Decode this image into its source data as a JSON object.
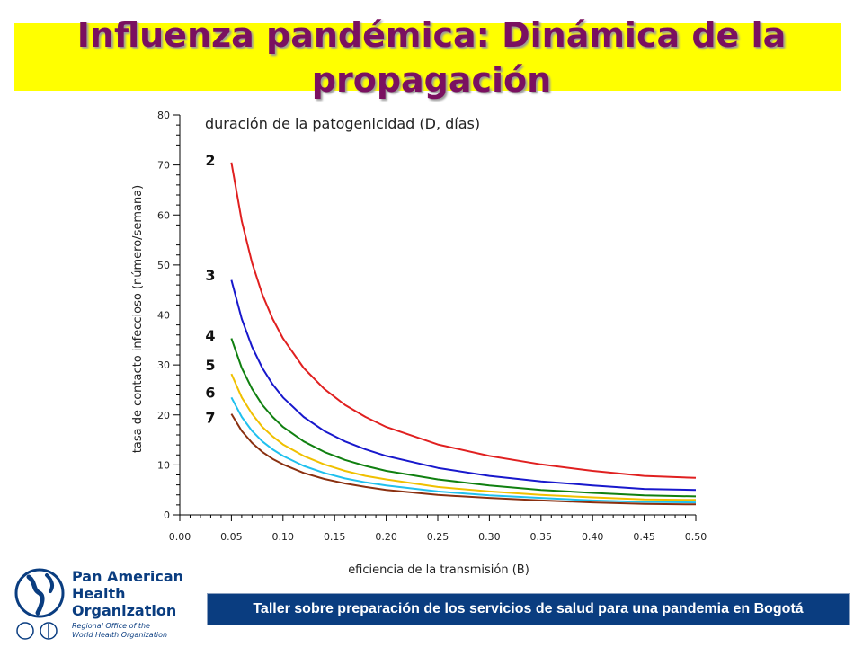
{
  "page": {
    "title_line1": "Influenza pandémica: Dinámica de la",
    "title_line2": "propagación",
    "footer": "Taller sobre preparación de los servicios de salud para una pandemia en Bogotá",
    "logo": {
      "line1": "Pan American",
      "line2": "Health",
      "line3": "Organization",
      "sub1": "Regional Office of the",
      "sub2": "World Health Organization"
    }
  },
  "chart_data": {
    "type": "line",
    "title": "duración de la patogenicidad (D, días)",
    "xlabel": "eficiencia de la transmisión (B)",
    "ylabel": "tasa de contacto infeccioso (número/semana)",
    "xlim": [
      0,
      0.5
    ],
    "ylim": [
      0,
      80
    ],
    "x_ticks": [
      "0.00",
      "0.05",
      "0.10",
      "0.15",
      "0.20",
      "0.25",
      "0.30",
      "0.35",
      "0.40",
      "0.45",
      "0.50"
    ],
    "y_ticks": [
      "0",
      "10",
      "20",
      "30",
      "40",
      "50",
      "60",
      "70",
      "80"
    ],
    "x": [
      0.05,
      0.06,
      0.07,
      0.08,
      0.09,
      0.1,
      0.12,
      0.14,
      0.16,
      0.18,
      0.2,
      0.25,
      0.3,
      0.35,
      0.4,
      0.45,
      0.5
    ],
    "series": [
      {
        "name": "2",
        "color": "#e02020",
        "label_y": 71,
        "values": [
          70.5,
          58.8,
          50.4,
          44.1,
          39.2,
          35.3,
          29.4,
          25.2,
          22.0,
          19.6,
          17.6,
          14.1,
          11.8,
          10.1,
          8.8,
          7.8,
          7.4
        ]
      },
      {
        "name": "3",
        "color": "#1818cc",
        "label_y": 48,
        "values": [
          47.0,
          39.2,
          33.6,
          29.4,
          26.1,
          23.5,
          19.6,
          16.8,
          14.7,
          13.1,
          11.8,
          9.4,
          7.8,
          6.7,
          5.9,
          5.2,
          5.0
        ]
      },
      {
        "name": "4",
        "color": "#108010",
        "label_y": 36,
        "values": [
          35.3,
          29.4,
          25.2,
          22.0,
          19.6,
          17.6,
          14.7,
          12.6,
          11.0,
          9.8,
          8.8,
          7.1,
          5.9,
          5.0,
          4.4,
          3.9,
          3.7
        ]
      },
      {
        "name": "5",
        "color": "#f0c000",
        "label_y": 30,
        "values": [
          28.2,
          23.5,
          20.2,
          17.6,
          15.7,
          14.1,
          11.8,
          10.1,
          8.8,
          7.8,
          7.1,
          5.6,
          4.7,
          4.0,
          3.5,
          3.1,
          3.0
        ]
      },
      {
        "name": "6",
        "color": "#20c0ee",
        "label_y": 24.5,
        "values": [
          23.5,
          19.6,
          16.8,
          14.7,
          13.1,
          11.8,
          9.8,
          8.4,
          7.3,
          6.5,
          5.9,
          4.7,
          3.9,
          3.4,
          2.9,
          2.6,
          2.5
        ]
      },
      {
        "name": "7",
        "color": "#8a3010",
        "label_y": 19.5,
        "values": [
          20.2,
          16.8,
          14.4,
          12.6,
          11.2,
          10.1,
          8.4,
          7.2,
          6.3,
          5.6,
          5.0,
          4.0,
          3.4,
          2.9,
          2.5,
          2.2,
          2.1
        ]
      }
    ],
    "grid": false,
    "legend": "inline-left"
  }
}
